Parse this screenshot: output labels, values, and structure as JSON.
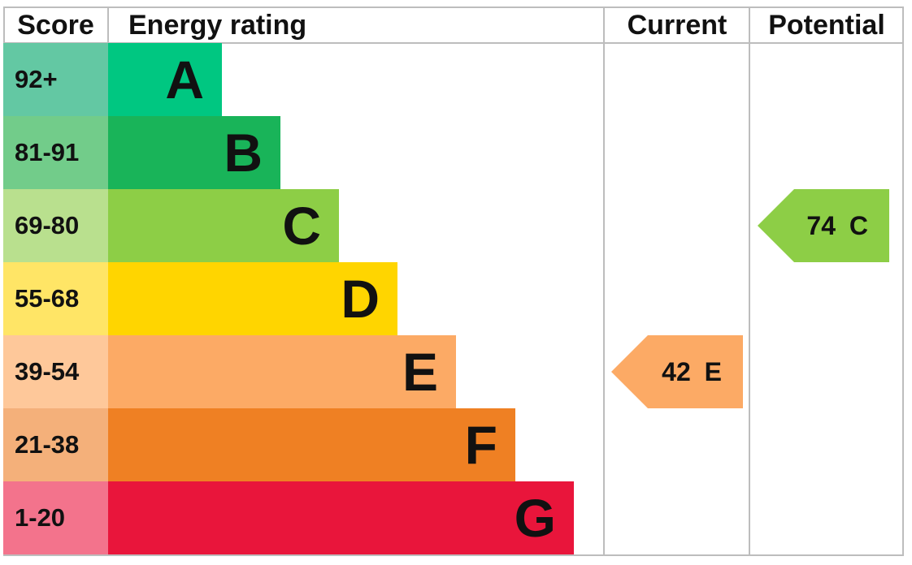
{
  "chart_data": {
    "type": "bar",
    "headers": {
      "score": "Score",
      "rating": "Energy rating",
      "current": "Current",
      "potential": "Potential"
    },
    "bands": [
      {
        "letter": "A",
        "range": "92+",
        "color": "#00c781",
        "light": "#63c8a3"
      },
      {
        "letter": "B",
        "range": "81-91",
        "color": "#19b459",
        "light": "#72cc8a"
      },
      {
        "letter": "C",
        "range": "69-80",
        "color": "#8dce46",
        "light": "#b9e08e"
      },
      {
        "letter": "D",
        "range": "55-68",
        "color": "#ffd500",
        "light": "#ffe566"
      },
      {
        "letter": "E",
        "range": "39-54",
        "color": "#fcaa65",
        "light": "#fec89a"
      },
      {
        "letter": "F",
        "range": "21-38",
        "color": "#ef8023",
        "light": "#f4b07a"
      },
      {
        "letter": "G",
        "range": "1-20",
        "color": "#e9153b",
        "light": "#f3738c"
      }
    ],
    "current": {
      "score": 42,
      "band": "E",
      "label": "42 E",
      "color": "#fcaa65"
    },
    "potential": {
      "score": 74,
      "band": "C",
      "label": "74 C",
      "color": "#8dce46"
    }
  }
}
